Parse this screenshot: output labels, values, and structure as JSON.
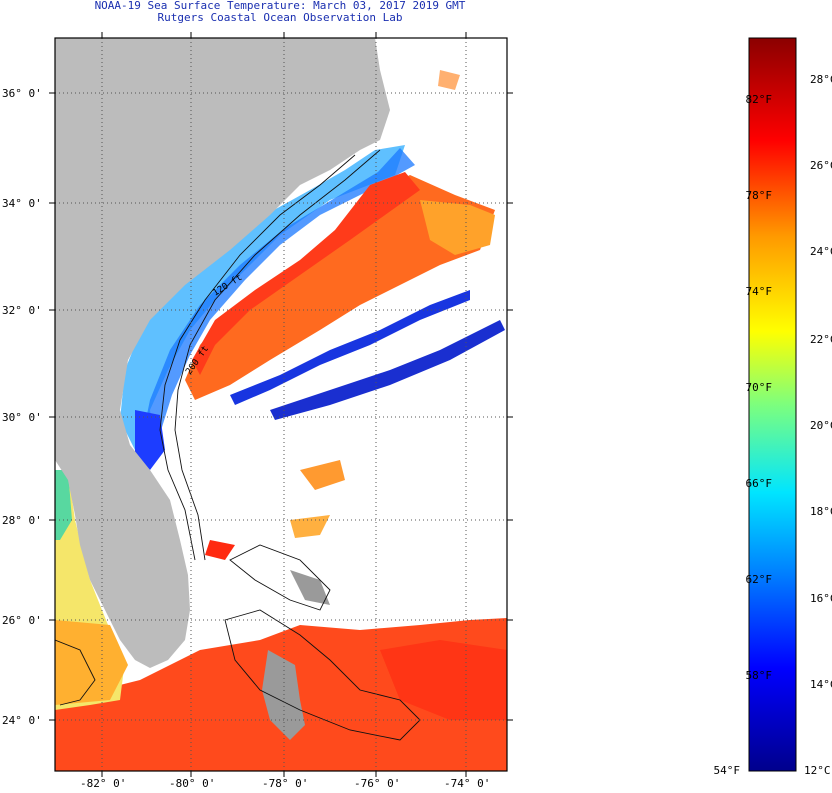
{
  "title": {
    "line1": "NOAA-19 Sea Surface Temperature:  March 03, 2017 2019 GMT",
    "line2": "Rutgers Coastal Ocean Observation Lab"
  },
  "map": {
    "lat_labels": [
      "36° 0'",
      "34° 0'",
      "32° 0'",
      "30° 0'",
      "28° 0'",
      "26° 0'",
      "24° 0'"
    ],
    "lon_labels": [
      "-82° 0'",
      "-80° 0'",
      "-78° 0'",
      "-76° 0'",
      "-74° 0'"
    ],
    "isobath_labels": [
      "120 ft",
      "200 ft"
    ],
    "colors": {
      "land": "#bcbcbc",
      "ocean_missing": "#ffffff",
      "grid": "#555555"
    }
  },
  "colorbar": {
    "fahrenheit": [
      "82°F",
      "78°F",
      "74°F",
      "70°F",
      "66°F",
      "62°F",
      "58°F",
      "54°F"
    ],
    "celsius": [
      "28°C",
      "26°C",
      "24°C",
      "22°C",
      "20°C",
      "18°C",
      "16°C",
      "14°C",
      "12°C"
    ],
    "range_c": [
      12,
      29
    ],
    "stops": [
      "#00008c",
      "#0000ff",
      "#0080ff",
      "#00e5ff",
      "#7dff7d",
      "#ffff00",
      "#ff9900",
      "#ff0000",
      "#8b0000"
    ]
  }
}
